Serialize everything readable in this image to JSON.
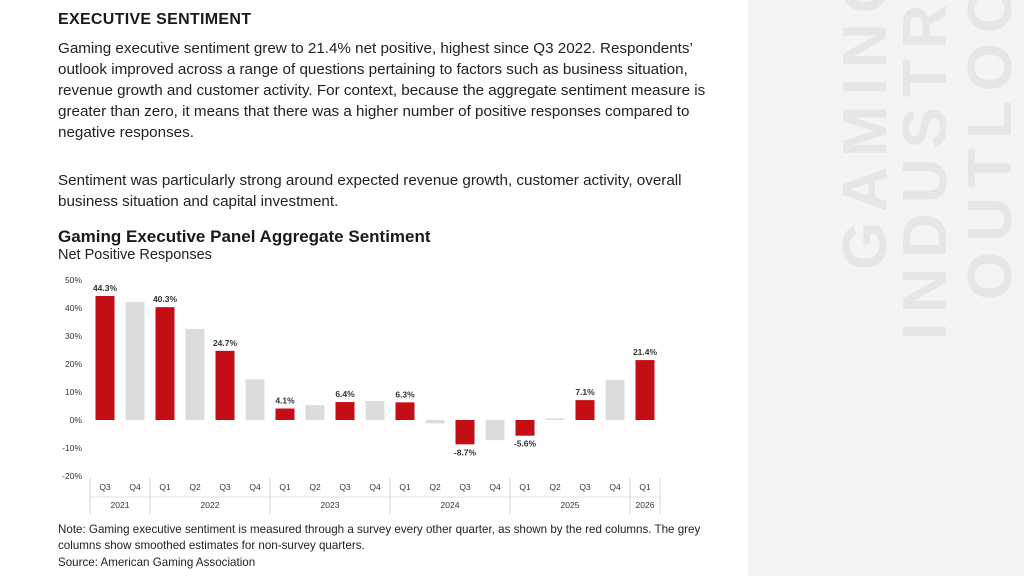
{
  "section": {
    "heading": "EXECUTIVE SENTIMENT",
    "paragraph1": "Gaming executive sentiment grew to 21.4% net positive, highest since Q3 2022. Respondents’ outlook improved across a range of questions pertaining to factors such as business situation, revenue growth and customer activity. For context, because the aggregate sentiment measure is greater than zero, it means that there was a higher number of positive responses compared to negative responses.",
    "paragraph2": "Sentiment was particularly strong around expected revenue growth, customer activity, overall business situation and capital investment."
  },
  "sidebar": {
    "words": [
      "GAMING",
      "INDUSTRY",
      "OUTLOOK"
    ]
  },
  "footer": {
    "note": "Note: Gaming executive sentiment is measured through a survey every other quarter, as shown by the red columns. The grey columns show smoothed estimates for non-survey quarters.",
    "source": "Source: American Gaming Association"
  },
  "colors": {
    "survey": "#c20e14",
    "estimate": "#dcdcdc",
    "text": "#1c1c1c"
  },
  "chart_data": {
    "type": "bar",
    "title": "Gaming Executive Panel Aggregate Sentiment",
    "subtitle": "Net Positive Responses",
    "ylim": [
      -20,
      50
    ],
    "yticks": [
      50,
      40,
      30,
      20,
      10,
      0,
      -10,
      -20
    ],
    "ytick_labels": [
      "50%",
      "40%",
      "30%",
      "20%",
      "10%",
      "0%",
      "-10%",
      "-20%"
    ],
    "grid": false,
    "categories": [
      "Q3",
      "Q4",
      "Q1",
      "Q2",
      "Q3",
      "Q4",
      "Q1",
      "Q2",
      "Q3",
      "Q4",
      "Q1",
      "Q2",
      "Q3",
      "Q4",
      "Q1",
      "Q2",
      "Q3",
      "Q4",
      "Q1"
    ],
    "years": [
      {
        "label": "2021",
        "quarters": 2
      },
      {
        "label": "2022",
        "quarters": 4
      },
      {
        "label": "2023",
        "quarters": 4
      },
      {
        "label": "2024",
        "quarters": 4
      },
      {
        "label": "2025",
        "quarters": 4
      },
      {
        "label": "2026",
        "quarters": 1
      }
    ],
    "values": [
      44.3,
      42.2,
      40.3,
      32.5,
      24.7,
      14.5,
      4.1,
      5.3,
      6.4,
      6.8,
      6.3,
      -1.2,
      -8.7,
      -7.2,
      -5.6,
      0.6,
      7.1,
      14.3,
      21.4
    ],
    "survey": [
      true,
      false,
      true,
      false,
      true,
      false,
      true,
      false,
      true,
      false,
      true,
      false,
      true,
      false,
      true,
      false,
      true,
      false,
      true
    ],
    "labels": [
      "44.3%",
      "",
      "40.3%",
      "",
      "24.7%",
      "",
      "4.1%",
      "",
      "6.4%",
      "",
      "6.3%",
      "",
      "-8.7%",
      "",
      "-5.6%",
      "",
      "7.1%",
      "",
      "21.4%"
    ]
  }
}
